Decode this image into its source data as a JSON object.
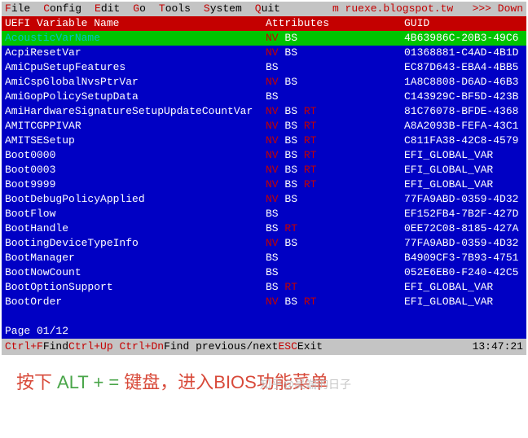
{
  "colors": {
    "bg": "#0000c4",
    "menubar_bg": "#c4c4c4",
    "header_bg": "#c40000",
    "selected_bg": "#00c400",
    "hotkey": "#c40000",
    "text": "#ffffff"
  },
  "menubar": {
    "items": [
      {
        "hot": "F",
        "rest": "ile"
      },
      {
        "hot": "C",
        "rest": "onfig"
      },
      {
        "hot": "E",
        "rest": "dit"
      },
      {
        "hot": "G",
        "rest": "o"
      },
      {
        "hot": "T",
        "rest": "ools"
      },
      {
        "hot": "S",
        "rest": "ystem"
      },
      {
        "hot": "Q",
        "rest": "uit"
      }
    ],
    "right_text": "m ruexe.blogspot.tw   >>> Down"
  },
  "headers": {
    "name": "UEFI Variable Name",
    "attr": "Attributes",
    "guid": "GUID"
  },
  "rows": [
    {
      "name": "AcousticVarName",
      "nv": true,
      "bs": true,
      "rt": false,
      "guid": "4B63986C-20B3-49C6",
      "selected": true
    },
    {
      "name": "AcpiResetVar",
      "nv": true,
      "bs": true,
      "rt": false,
      "guid": "01368881-C4AD-4B1D"
    },
    {
      "name": "AmiCpuSetupFeatures",
      "nv": false,
      "bs": true,
      "rt": false,
      "guid": "EC87D643-EBA4-4BB5"
    },
    {
      "name": "AmiCspGlobalNvsPtrVar",
      "nv": true,
      "bs": true,
      "rt": false,
      "guid": "1A8C8808-D6AD-46B3"
    },
    {
      "name": "AmiGopPolicySetupData",
      "nv": false,
      "bs": true,
      "rt": false,
      "guid": "C143929C-BF5D-423B"
    },
    {
      "name": "AmiHardwareSignatureSetupUpdateCountVar",
      "nv": true,
      "bs": true,
      "rt": true,
      "guid": "81C76078-BFDE-4368"
    },
    {
      "name": "AMITCGPPIVAR",
      "nv": true,
      "bs": true,
      "rt": true,
      "guid": "A8A2093B-FEFA-43C1"
    },
    {
      "name": "AMITSESetup",
      "nv": true,
      "bs": true,
      "rt": true,
      "guid": "C811FA38-42C8-4579"
    },
    {
      "name": "Boot0000",
      "nv": true,
      "bs": true,
      "rt": true,
      "guid": "EFI_GLOBAL_VAR"
    },
    {
      "name": "Boot0003",
      "nv": true,
      "bs": true,
      "rt": true,
      "guid": "EFI_GLOBAL_VAR"
    },
    {
      "name": "Boot9999",
      "nv": true,
      "bs": true,
      "rt": true,
      "guid": "EFI_GLOBAL_VAR"
    },
    {
      "name": "BootDebugPolicyApplied",
      "nv": true,
      "bs": true,
      "rt": false,
      "guid": "77FA9ABD-0359-4D32"
    },
    {
      "name": "BootFlow",
      "nv": false,
      "bs": true,
      "rt": false,
      "guid": "EF152FB4-7B2F-427D"
    },
    {
      "name": "BootHandle",
      "nv": false,
      "bs": true,
      "rt": true,
      "guid": "0EE72C08-8185-427A"
    },
    {
      "name": "BootingDeviceTypeInfo",
      "nv": true,
      "bs": true,
      "rt": false,
      "guid": "77FA9ABD-0359-4D32"
    },
    {
      "name": "BootManager",
      "nv": false,
      "bs": true,
      "rt": false,
      "guid": "B4909CF3-7B93-4751"
    },
    {
      "name": "BootNowCount",
      "nv": false,
      "bs": true,
      "rt": false,
      "guid": "052E6EB0-F240-42C5"
    },
    {
      "name": "BootOptionSupport",
      "nv": false,
      "bs": true,
      "rt": true,
      "guid": "EFI_GLOBAL_VAR"
    },
    {
      "name": "BootOrder",
      "nv": true,
      "bs": true,
      "rt": true,
      "guid": "EFI_GLOBAL_VAR"
    }
  ],
  "page_indicator": "Page 01/12",
  "statusbar": {
    "k1": "Ctrl+F",
    "t1": " Find  ",
    "k2": "Ctrl+Up Ctrl+Dn",
    "t2": " Find previous/next  ",
    "k3": "ESC",
    "t3": " Exit",
    "time": "13:47:21"
  },
  "caption": {
    "p1": "按下",
    "alt": " ALT + = ",
    "p2": "键盘，进入BIOS功能菜单",
    "watermark": "知乎@吴端的日子"
  }
}
